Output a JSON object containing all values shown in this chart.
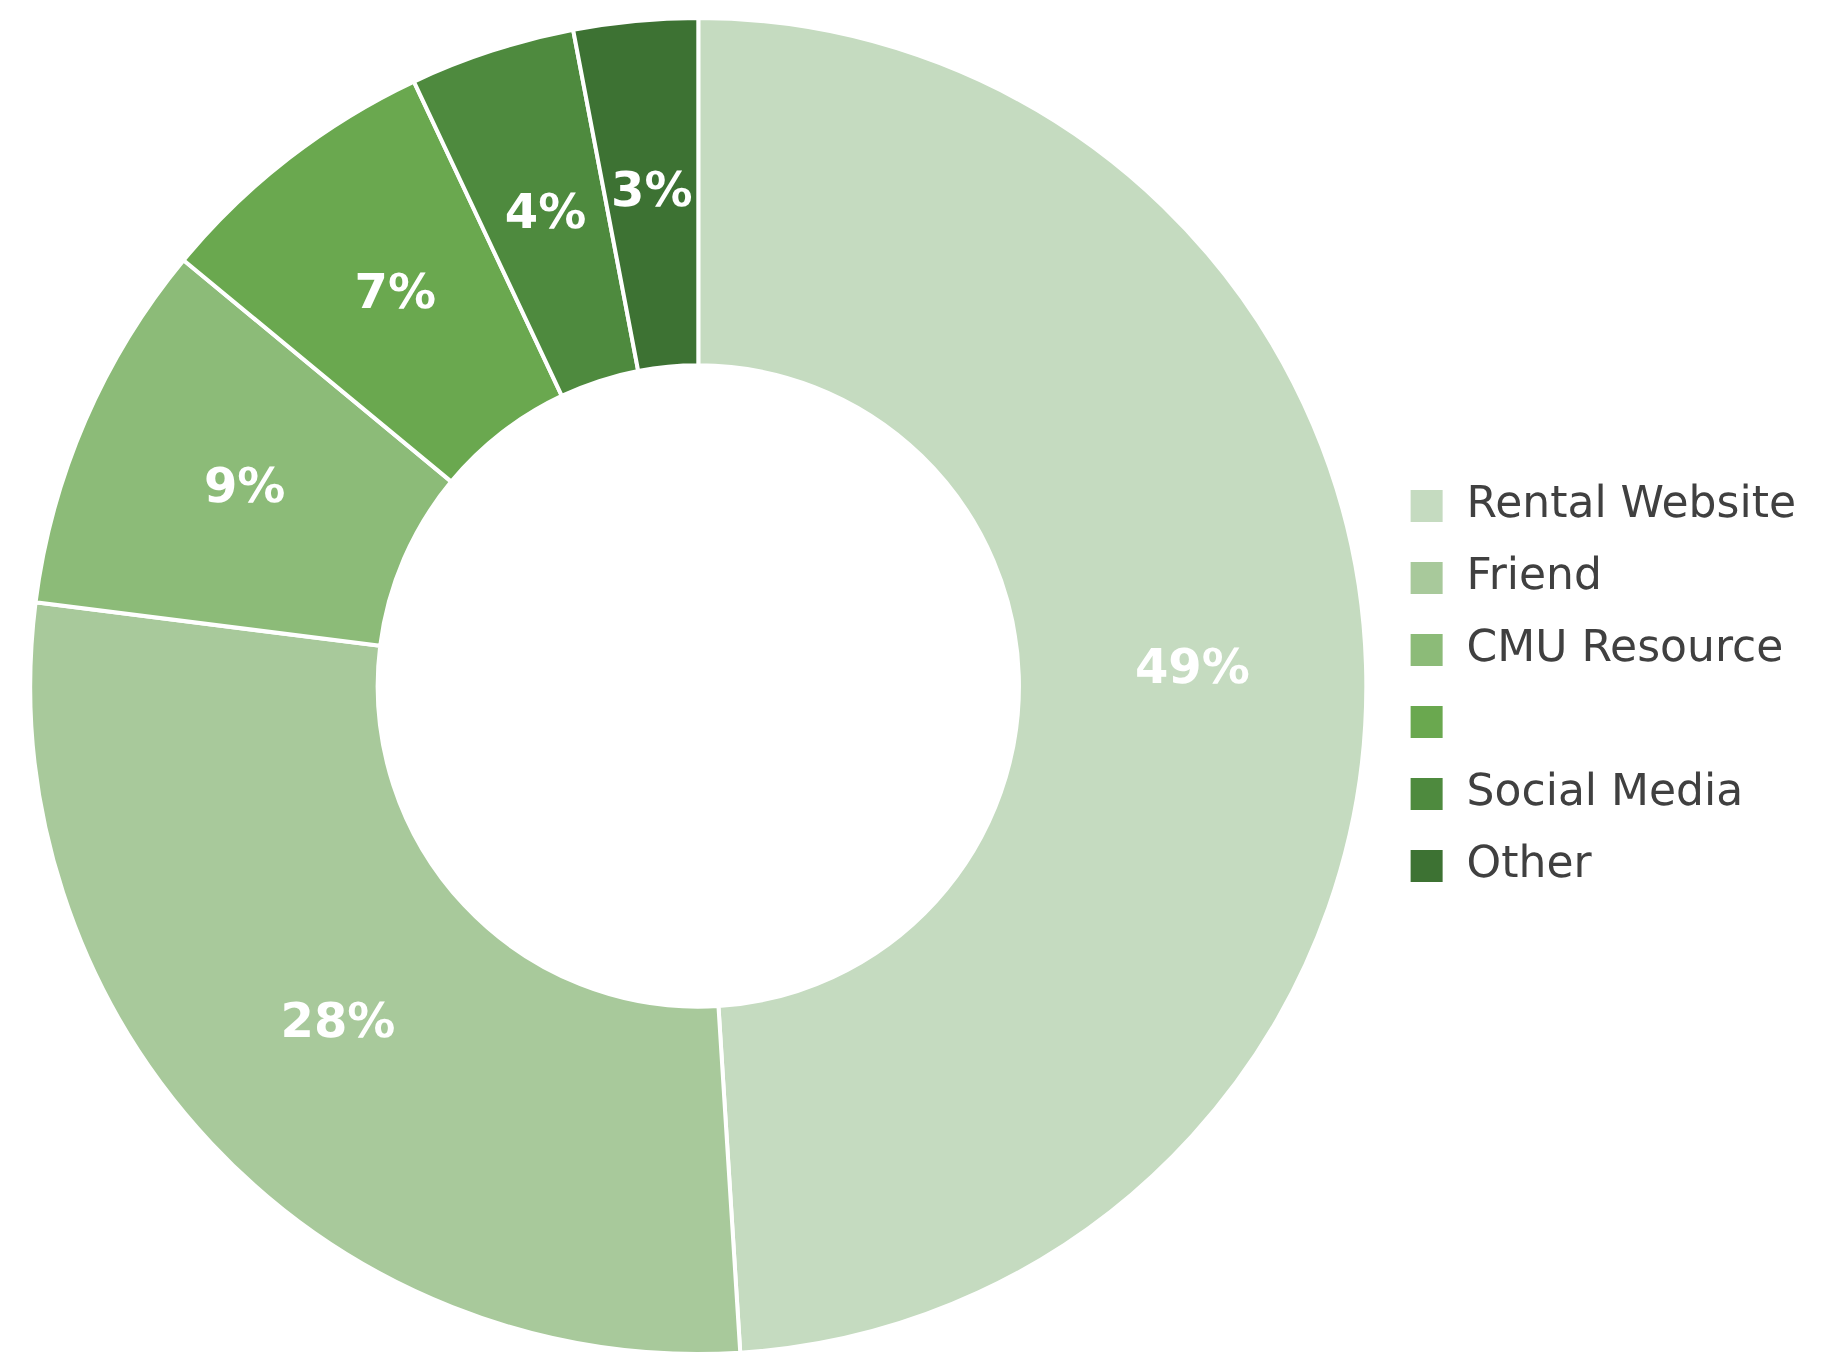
{
  "chart_data": {
    "type": "donut",
    "categories": [
      "Rental Website",
      "Friend",
      "CMU Resource",
      null,
      "Social Media",
      "Other"
    ],
    "values": [
      49,
      28,
      9,
      7,
      4,
      3
    ],
    "colors": [
      "#c5dbc0",
      "#a8c99b",
      "#8cbb78",
      "#6aa84f",
      "#4e8a3e",
      "#3d7233"
    ],
    "value_labels": [
      "49%",
      "28%",
      "9%",
      "7%",
      "4%",
      "3%"
    ],
    "legend": "right"
  }
}
